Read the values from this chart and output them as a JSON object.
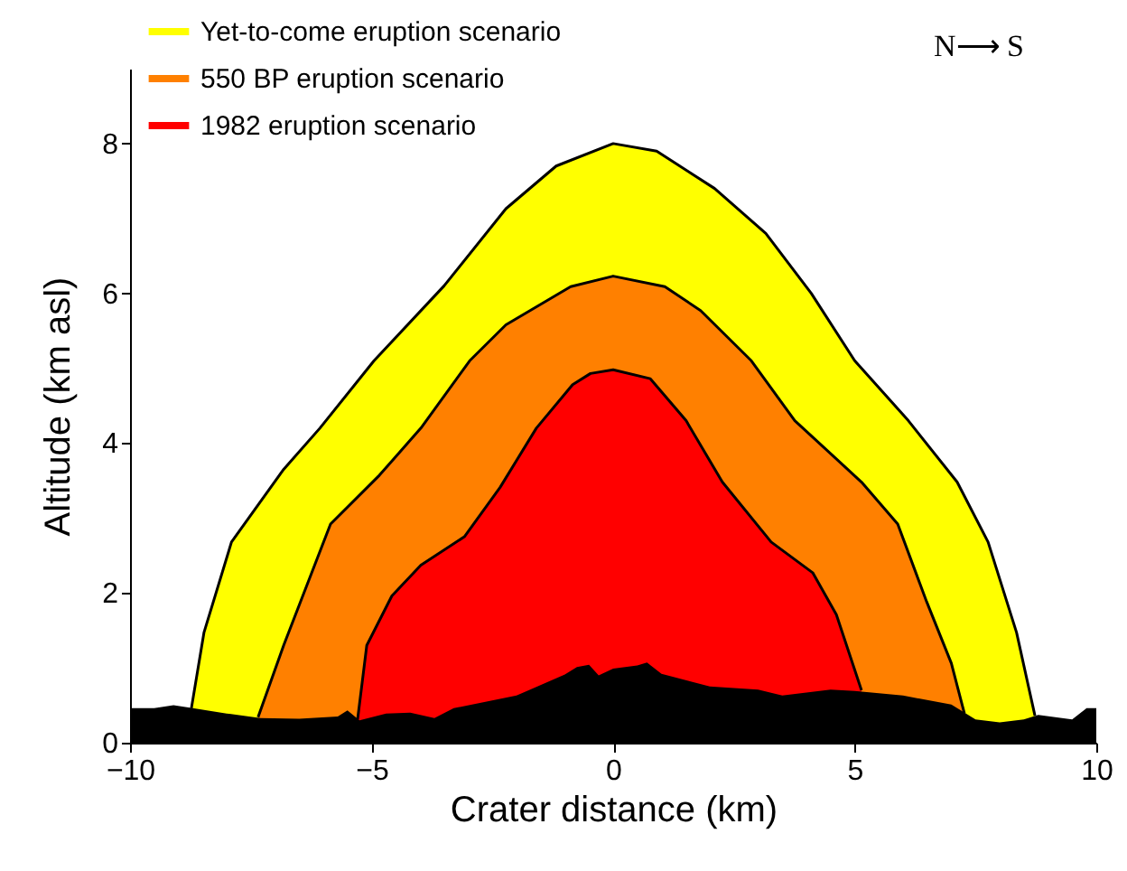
{
  "chart_data": {
    "type": "area",
    "xlabel": "Crater distance (km)",
    "ylabel": "Altitude (km asl)",
    "annotations": [
      "N⟶ S"
    ],
    "xlim": [
      -10,
      10
    ],
    "xticks": [
      -10,
      -5,
      0,
      5,
      10
    ],
    "ylim": [
      0,
      9
    ],
    "yticks": [
      0,
      2,
      4,
      6,
      8
    ],
    "grid": false,
    "legend": "top left",
    "series": [
      {
        "name": "Yet-to-come eruption scenario",
        "color": "#ffff00",
        "x": [
          -8.73,
          -8.47,
          -7.9,
          -6.82,
          -6.07,
          -4.95,
          -3.5,
          -2.22,
          -1.18,
          0,
          0.9,
          2.1,
          3.16,
          4.1,
          5.0,
          6.11,
          7.12,
          7.76,
          8.35,
          8.73
        ],
        "values": [
          0.46,
          1.47,
          2.68,
          3.65,
          4.2,
          5.1,
          6.1,
          7.13,
          7.7,
          8.0,
          7.9,
          7.4,
          6.8,
          6.0,
          5.1,
          4.3,
          3.48,
          2.68,
          1.47,
          0.36
        ]
      },
      {
        "name": "550 BP eruption scenario",
        "color": "#ff8000",
        "x": [
          -7.35,
          -6.82,
          -5.85,
          -4.84,
          -3.98,
          -2.97,
          -2.22,
          -0.88,
          0,
          1.07,
          1.81,
          2.86,
          3.76,
          5.14,
          5.89,
          6.49,
          7.0,
          7.27
        ],
        "values": [
          0.34,
          1.3,
          2.92,
          3.57,
          4.2,
          5.1,
          5.58,
          6.09,
          6.23,
          6.09,
          5.77,
          5.1,
          4.3,
          3.48,
          2.92,
          1.88,
          1.06,
          0.39
        ]
      },
      {
        "name": "1982 eruption scenario",
        "color": "#ff0000",
        "x": [
          -5.29,
          -5.1,
          -4.58,
          -3.98,
          -3.08,
          -2.34,
          -1.59,
          -0.84,
          -0.47,
          0,
          0.77,
          1.51,
          2.26,
          3.27,
          4.13,
          4.62,
          5.14
        ],
        "values": [
          0.31,
          1.3,
          1.96,
          2.37,
          2.75,
          3.41,
          4.2,
          4.78,
          4.93,
          4.98,
          4.86,
          4.3,
          3.48,
          2.68,
          2.27,
          1.71,
          0.7
        ]
      },
      {
        "color": "#000000",
        "x": [
          -10,
          -9.5,
          -9.1,
          -8.7,
          -8,
          -7.3,
          -6.5,
          -5.7,
          -5.5,
          -5.25,
          -4.7,
          -4.2,
          -3.7,
          -3.3,
          -2,
          -1,
          -0.75,
          -0.5,
          -0.3,
          0,
          0.5,
          0.7,
          1,
          2,
          3,
          3.5,
          4,
          4.5,
          5,
          6,
          7,
          7.5,
          8,
          8.5,
          8.8,
          9.5,
          9.8,
          10
        ],
        "values": [
          0.46,
          0.46,
          0.5,
          0.46,
          0.39,
          0.33,
          0.32,
          0.35,
          0.43,
          0.3,
          0.39,
          0.4,
          0.33,
          0.46,
          0.63,
          0.91,
          1.01,
          1.04,
          0.9,
          0.99,
          1.03,
          1.07,
          0.92,
          0.75,
          0.71,
          0.63,
          0.67,
          0.71,
          0.69,
          0.63,
          0.51,
          0.31,
          0.27,
          0.31,
          0.37,
          0.31,
          0.46,
          0.46
        ]
      }
    ]
  }
}
